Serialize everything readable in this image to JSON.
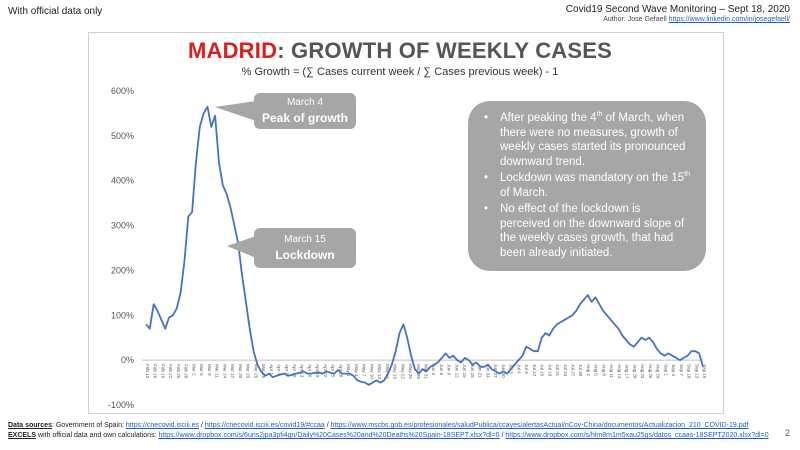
{
  "header": {
    "top_left": "With official data only",
    "top_right_title": "Covid19 Second Wave Monitoring – Sept 18, 2020",
    "author_prefix": "Author: Jose Gefaell ",
    "author_link": "https://www.linkedin.com/in/josegefaell/"
  },
  "chart_data": {
    "type": "line",
    "title_city": "MADRID",
    "title_rest": ": GROWTH OF WEEKLY CASES",
    "subtitle": "% Growth = (∑ Cases current week / ∑ Cases previous week) - 1",
    "yticks": [
      "600%",
      "500%",
      "400%",
      "300%",
      "200%",
      "100%",
      "0%",
      "-100%"
    ],
    "ylim": [
      -100,
      600
    ],
    "xticks": [
      "Feb 13",
      "Feb 16",
      "Feb 19",
      "Feb 22",
      "Feb 25",
      "Feb 28",
      "Mar 2",
      "Mar 5",
      "Mar 8",
      "Mar 11",
      "Mar 14",
      "Mar 17",
      "Mar 20",
      "Mar 23",
      "Mar 26",
      "Mar 29",
      "Apr 1",
      "Apr 4",
      "Apr 7",
      "Apr 10",
      "Apr 13",
      "Apr 16",
      "Apr 19",
      "Apr 22",
      "Apr 25",
      "Apr 28",
      "May 1",
      "May 4",
      "May 7",
      "May 10",
      "May 13",
      "May 16",
      "May 19",
      "May 22",
      "May 25",
      "May 28",
      "May 31",
      "Jun 3",
      "Jun 6",
      "Jun 9",
      "Jun 12",
      "Jun 15",
      "Jun 18",
      "Jun 21",
      "Jun 24",
      "Jun 27",
      "Jun 30",
      "Jul 3",
      "Jul 6",
      "Jul 9",
      "Jul 12",
      "Jul 15",
      "Jul 18",
      "Jul 21",
      "Jul 24",
      "Jul 27",
      "Jul 30",
      "Aug 2",
      "Aug 5",
      "Aug 8",
      "Aug 11",
      "Aug 14",
      "Aug 17",
      "Aug 20",
      "Aug 23",
      "Aug 26",
      "Aug 29",
      "Sep 1",
      "Sep 4",
      "Sep 7",
      "Sep 10",
      "Sep 13",
      "Sep 16"
    ],
    "series": [
      {
        "color": "#4472c4",
        "values": [
          80,
          70,
          125,
          110,
          90,
          70,
          95,
          100,
          115,
          150,
          220,
          320,
          330,
          440,
          520,
          550,
          565,
          520,
          545,
          440,
          390,
          370,
          340,
          300,
          260,
          190,
          130,
          70,
          20,
          -10,
          -25,
          -35,
          -30,
          -38,
          -35,
          -32,
          -30,
          -35,
          -33,
          -30,
          -28,
          -25,
          -30,
          -30,
          -28,
          -27,
          -30,
          -25,
          -28,
          -30,
          -22,
          -30,
          -30,
          -30,
          -35,
          -45,
          -48,
          -50,
          -55,
          -50,
          -45,
          -50,
          -45,
          -30,
          -10,
          20,
          60,
          80,
          50,
          10,
          -20,
          -30,
          -20,
          -25,
          -15,
          -10,
          -5,
          5,
          15,
          5,
          10,
          0,
          -5,
          5,
          0,
          -10,
          -5,
          -15,
          -15,
          -10,
          -20,
          -25,
          -30,
          -25,
          -30,
          -20,
          -10,
          0,
          10,
          30,
          25,
          20,
          20,
          50,
          60,
          55,
          70,
          80,
          85,
          90,
          95,
          100,
          110,
          125,
          135,
          145,
          130,
          140,
          125,
          110,
          100,
          90,
          80,
          70,
          55,
          45,
          35,
          30,
          40,
          50,
          45,
          50,
          40,
          25,
          15,
          10,
          15,
          10,
          5,
          0,
          5,
          10,
          20,
          20,
          15,
          -15
        ]
      }
    ],
    "annotations": {
      "peak_date": "March 4",
      "peak_label": "Peak of growth",
      "lockdown_date": "March 15",
      "lockdown_label": "Lockdown"
    },
    "notes": {
      "b1_a": "After peaking the 4",
      "b1_sup": "th",
      "b1_b": " of March, when there were no measures, growth of weekly cases started its pronounced downward trend.",
      "b2_a": "Lockdown was mandatory on the 15",
      "b2_sup": "th",
      "b2_b": " of March.",
      "b3": "No effect of the lockdown is perceived on the downward slope of the weekly cases growth, that had been already initiated."
    },
    "grid": false,
    "legend": "none"
  },
  "footer": {
    "sources_label": "Data sources",
    "sources_text": ": Government of Spain:  ",
    "src1": "https://cnecovid.isciii.es",
    "sep1": "  /  ",
    "src2": "https://cnecovid.isciii.es/covid19/#ccaa",
    "sep2": "  /  ",
    "src3": "https://www.mscbs.gob.es/profesionales/saludPublica/ccayes/alertasActual/nCov-China/documentos/Actualizacion_210_COVID-19.pdf",
    "excels_label": "EXCELS",
    "excels_text": " with official data and own calculations:  ",
    "xl1": "https://www.dropbox.com/s/6uns2jpa3pfi4gn/Daily%20Cases%20and%20Deaths%20Spain-18SEPT.xlsx?dl=0",
    "sep3": "  /  ",
    "xl2": "https://www.dropbox.com/s/hlm8m1m5xau25gs/datos_ccaas-18SEPT2020.xlsx?dl=0"
  },
  "page_number": "2"
}
